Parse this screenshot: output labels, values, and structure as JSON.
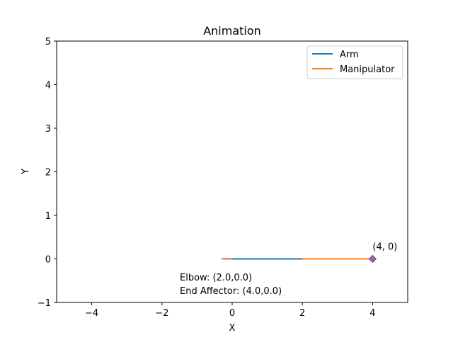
{
  "chart_data": {
    "type": "line",
    "title": "Animation",
    "xlabel": "X",
    "ylabel": "Y",
    "xlim": [
      -5,
      5
    ],
    "ylim": [
      -1,
      5
    ],
    "xticks": [
      -4,
      -2,
      0,
      2,
      4
    ],
    "yticks": [
      -1,
      0,
      1,
      2,
      3,
      4,
      5
    ],
    "grid": false,
    "legend_position": "top-right",
    "series": [
      {
        "name": "Arm",
        "color": "#1f77b4",
        "x": [
          0,
          2
        ],
        "y": [
          0,
          0
        ]
      },
      {
        "name": "Manipulator",
        "color": "#ff7f0e",
        "x": [
          2,
          4
        ],
        "y": [
          0,
          0
        ]
      }
    ],
    "base_marker": {
      "color": "#d62728",
      "x": [
        -0.3,
        0.3
      ],
      "y": [
        0,
        0
      ]
    },
    "end_point": {
      "x": 4,
      "y": 0,
      "color": "#8c6bb1",
      "label": "(4, 0)"
    },
    "annotations": {
      "elbow": "Elbow: (2.0,0.0)",
      "end_affector": "End Affector: (4.0,0.0)"
    }
  }
}
